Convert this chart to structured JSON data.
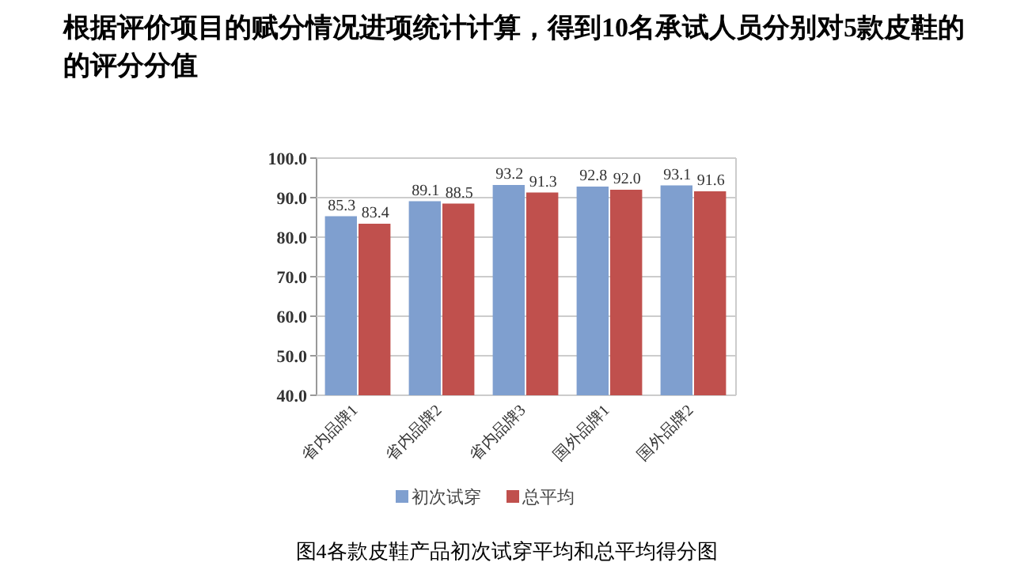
{
  "chart_data": {
    "type": "bar",
    "title": "根据评价项目的赋分情况进项统计计算，得到10名承试人员分别对5款皮鞋的的评分分值",
    "categories": [
      "省内品牌1",
      "省内品牌2",
      "省内品牌3",
      "国外品牌1",
      "国外品牌2"
    ],
    "series": [
      {
        "name": "初次试穿",
        "color": "#7f9fcf",
        "values": [
          85.3,
          89.1,
          93.2,
          92.8,
          93.1
        ],
        "value_labels": [
          "85.3",
          "89.1",
          "93.2",
          "92.8",
          "93.1"
        ]
      },
      {
        "name": "总平均",
        "color": "#c0504d",
        "values": [
          83.4,
          88.5,
          91.3,
          92.0,
          91.6
        ],
        "value_labels": [
          "83.4",
          "88.5",
          "91.3",
          "92.0",
          "91.6"
        ]
      }
    ],
    "ylim": [
      40,
      100
    ],
    "yticks": [
      {
        "value": 40,
        "label": "40.0"
      },
      {
        "value": 50,
        "label": "50.0"
      },
      {
        "value": 60,
        "label": "60.0"
      },
      {
        "value": 70,
        "label": "70.0"
      },
      {
        "value": 80,
        "label": "80.0"
      },
      {
        "value": 90,
        "label": "90.0"
      },
      {
        "value": 100,
        "label": "100.0"
      }
    ],
    "grid": "y",
    "legend": "bottom",
    "annotations": [
      "图4各款皮鞋产品初次试穿平均和总平均得分图"
    ]
  }
}
